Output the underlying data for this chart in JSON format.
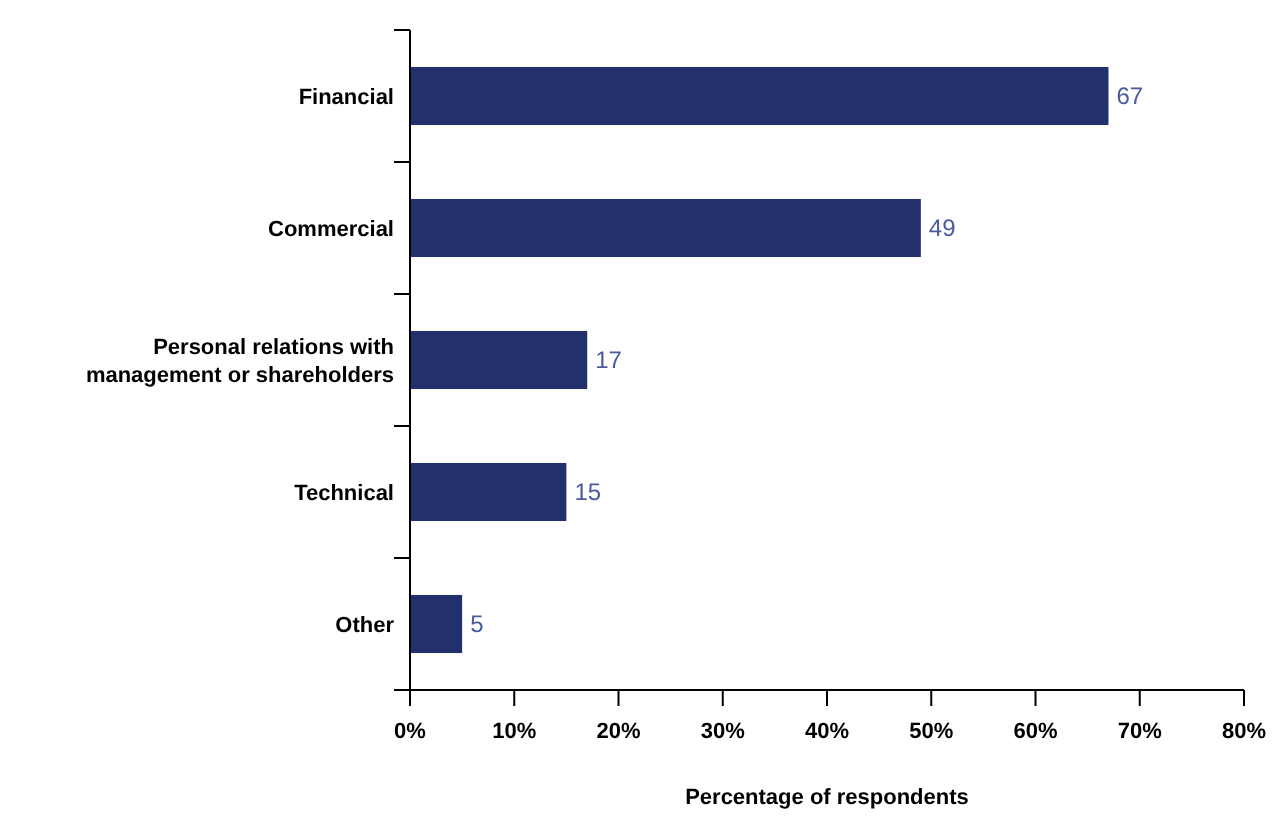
{
  "chart_data": {
    "type": "bar",
    "orientation": "horizontal",
    "xlabel": "Percentage of respondents",
    "categories": [
      "Financial",
      "Commercial",
      "Personal relations with management or shareholders",
      "Technical",
      "Other"
    ],
    "values": [
      67,
      49,
      17,
      15,
      5
    ],
    "color": "#22306b",
    "data_labels": true,
    "xlim": [
      0,
      80
    ],
    "xticks": [
      {
        "value": 0,
        "label": "0%"
      },
      {
        "value": 10,
        "label": "10%"
      },
      {
        "value": 20,
        "label": "20%"
      },
      {
        "value": 30,
        "label": "30%"
      },
      {
        "value": 40,
        "label": "40%"
      },
      {
        "value": 50,
        "label": "50%"
      },
      {
        "value": 60,
        "label": "60%"
      },
      {
        "value": 70,
        "label": "70%"
      },
      {
        "value": 80,
        "label": "80%"
      }
    ],
    "grid": false
  }
}
